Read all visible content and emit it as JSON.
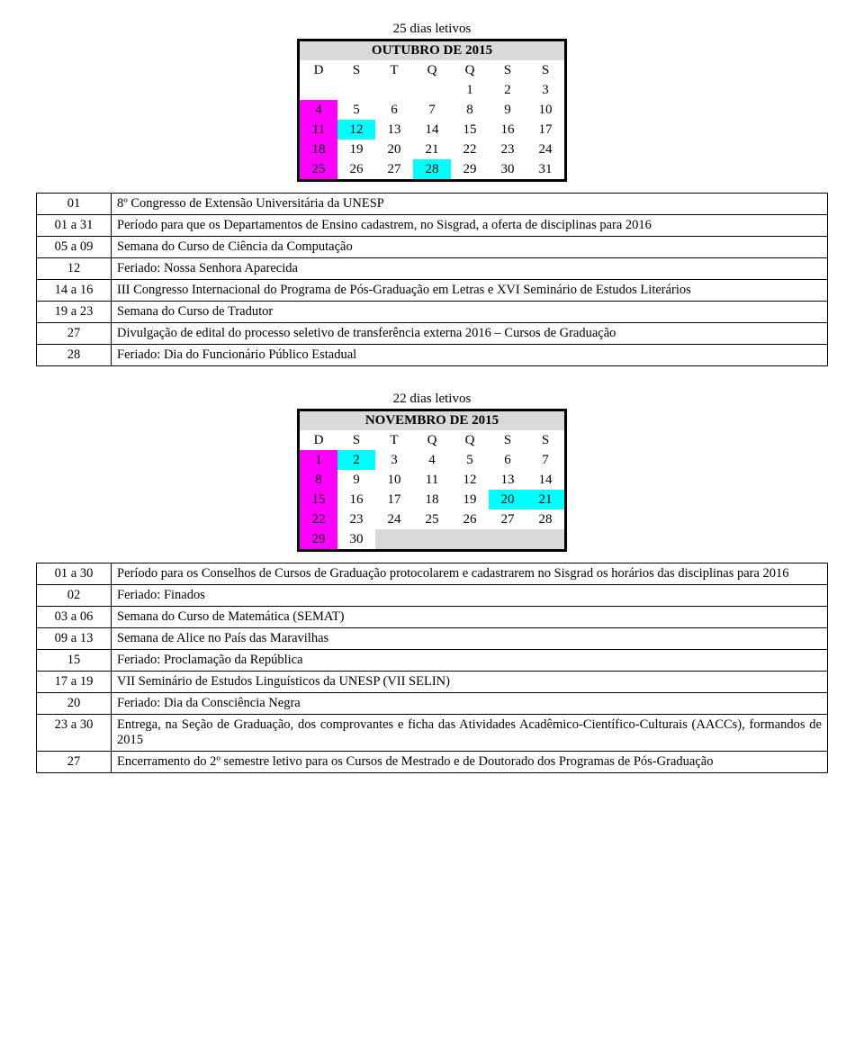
{
  "oct": {
    "caption": "25 dias letivos",
    "title": "OUTUBRO DE 2015",
    "dow": [
      "D",
      "S",
      "T",
      "Q",
      "Q",
      "S",
      "S"
    ],
    "grid": [
      [
        {
          "v": ""
        },
        {
          "v": ""
        },
        {
          "v": ""
        },
        {
          "v": ""
        },
        {
          "v": "1"
        },
        {
          "v": "2"
        },
        {
          "v": "3"
        }
      ],
      [
        {
          "v": "4",
          "c": "pink"
        },
        {
          "v": "5"
        },
        {
          "v": "6"
        },
        {
          "v": "7"
        },
        {
          "v": "8"
        },
        {
          "v": "9"
        },
        {
          "v": "10"
        }
      ],
      [
        {
          "v": "11",
          "c": "pink"
        },
        {
          "v": "12",
          "c": "cyan"
        },
        {
          "v": "13"
        },
        {
          "v": "14"
        },
        {
          "v": "15"
        },
        {
          "v": "16"
        },
        {
          "v": "17"
        }
      ],
      [
        {
          "v": "18",
          "c": "pink"
        },
        {
          "v": "19"
        },
        {
          "v": "20"
        },
        {
          "v": "21"
        },
        {
          "v": "22"
        },
        {
          "v": "23"
        },
        {
          "v": "24"
        }
      ],
      [
        {
          "v": "25",
          "c": "pink"
        },
        {
          "v": "26"
        },
        {
          "v": "27"
        },
        {
          "v": "28",
          "c": "cyan"
        },
        {
          "v": "29"
        },
        {
          "v": "30"
        },
        {
          "v": "31"
        }
      ]
    ],
    "events": [
      {
        "d": "01",
        "t": "8º Congresso de Extensão Universitária da UNESP"
      },
      {
        "d": "01 a 31",
        "t": "Período para que os Departamentos de Ensino cadastrem, no Sisgrad, a oferta de disciplinas para 2016"
      },
      {
        "d": "05 a 09",
        "t": "Semana do Curso de Ciência da Computação"
      },
      {
        "d": "12",
        "t": "Feriado: Nossa Senhora Aparecida"
      },
      {
        "d": "14 a 16",
        "t": "III Congresso Internacional do Programa de Pós-Graduação em Letras e XVI Seminário de Estudos Literários"
      },
      {
        "d": "19 a 23",
        "t": "Semana do Curso de Tradutor"
      },
      {
        "d": "27",
        "t": "Divulgação de edital do processo seletivo de transferência externa 2016 – Cursos de Graduação"
      },
      {
        "d": "28",
        "t": "Feriado: Dia do Funcionário Público Estadual"
      }
    ]
  },
  "nov": {
    "caption": "22 dias letivos",
    "title": "NOVEMBRO DE 2015",
    "dow": [
      "D",
      "S",
      "T",
      "Q",
      "Q",
      "S",
      "S"
    ],
    "grid": [
      [
        {
          "v": "1",
          "c": "pink"
        },
        {
          "v": "2",
          "c": "cyan"
        },
        {
          "v": "3"
        },
        {
          "v": "4"
        },
        {
          "v": "5"
        },
        {
          "v": "6"
        },
        {
          "v": "7"
        }
      ],
      [
        {
          "v": "8",
          "c": "pink"
        },
        {
          "v": "9"
        },
        {
          "v": "10"
        },
        {
          "v": "11"
        },
        {
          "v": "12"
        },
        {
          "v": "13"
        },
        {
          "v": "14"
        }
      ],
      [
        {
          "v": "15",
          "c": "pink"
        },
        {
          "v": "16"
        },
        {
          "v": "17"
        },
        {
          "v": "18"
        },
        {
          "v": "19"
        },
        {
          "v": "20",
          "c": "cyan"
        },
        {
          "v": "21",
          "c": "cyan"
        }
      ],
      [
        {
          "v": "22",
          "c": "pink"
        },
        {
          "v": "23"
        },
        {
          "v": "24"
        },
        {
          "v": "25"
        },
        {
          "v": "26"
        },
        {
          "v": "27"
        },
        {
          "v": "28"
        }
      ],
      [
        {
          "v": "29",
          "c": "pink"
        },
        {
          "v": "30"
        },
        {
          "v": "",
          "c": "gray"
        },
        {
          "v": "",
          "c": "gray"
        },
        {
          "v": "",
          "c": "gray"
        },
        {
          "v": "",
          "c": "gray"
        },
        {
          "v": "",
          "c": "gray"
        }
      ]
    ],
    "events": [
      {
        "d": "01 a 30",
        "t": "Período para os Conselhos de Cursos de Graduação protocolarem e cadastrarem no Sisgrad os horários das disciplinas para 2016"
      },
      {
        "d": "02",
        "t": "Feriado: Finados"
      },
      {
        "d": "03 a 06",
        "t": "Semana do Curso de Matemática (SEMAT)"
      },
      {
        "d": "09 a 13",
        "t": "Semana de Alice no País das Maravilhas"
      },
      {
        "d": "15",
        "t": "Feriado: Proclamação da República"
      },
      {
        "d": "17 a 19",
        "t": "VII Seminário de Estudos Linguísticos da UNESP (VII SELIN)"
      },
      {
        "d": "20",
        "t": "Feriado: Dia da Consciência Negra"
      },
      {
        "d": "23 a 30",
        "t": "Entrega, na Seção de Graduação, dos comprovantes e ficha das Atividades Acadêmico-Científico-Culturais (AACCs), formandos de 2015"
      },
      {
        "d": "27",
        "t": "Encerramento do 2º semestre letivo para os Cursos de Mestrado e de Doutorado dos Programas de Pós-Graduação"
      }
    ]
  }
}
